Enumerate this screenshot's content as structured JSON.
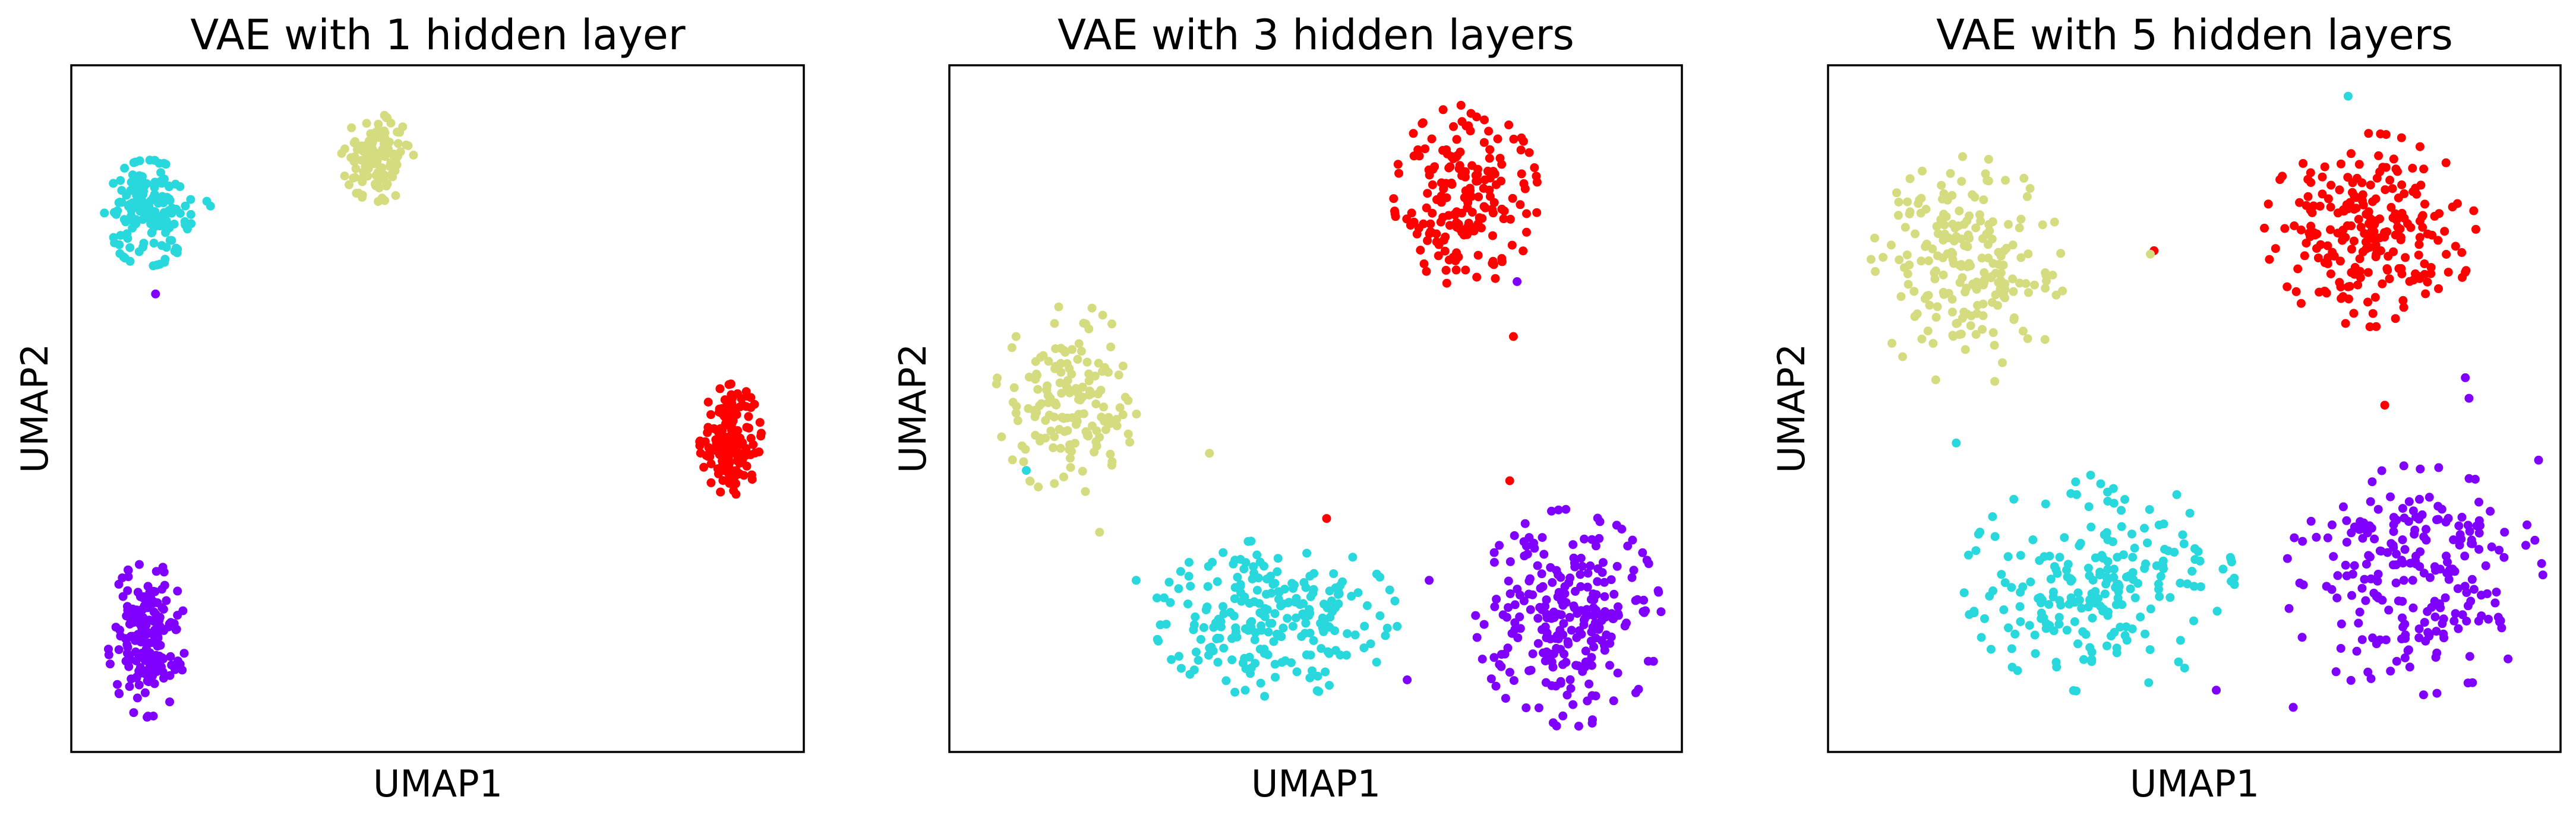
{
  "chart_data": [
    {
      "type": "scatter",
      "title": "VAE with 1 hidden layer",
      "xlabel": "UMAP1",
      "ylabel": "UMAP2",
      "xlim": [
        0,
        100
      ],
      "ylim": [
        0,
        100
      ],
      "ticks": "none",
      "grid": false,
      "clusters": [
        {
          "color": "#d4dc7f",
          "cx": 41.8,
          "cy": 86.5,
          "sx": 2.8,
          "sy": 3.6,
          "n": 130
        },
        {
          "color": "#28d8dc",
          "cx": 10.5,
          "cy": 78.5,
          "sx": 3.4,
          "sy": 4.4,
          "n": 160
        },
        {
          "color": "#ff0000",
          "cx": 90.0,
          "cy": 45.5,
          "sx": 2.4,
          "sy": 4.6,
          "n": 160
        },
        {
          "color": "#7f00ff",
          "cx": 10.3,
          "cy": 16.5,
          "sx": 3.0,
          "sy": 6.5,
          "n": 180
        }
      ],
      "outliers": [
        {
          "color": "#28d8dc",
          "x": 19.0,
          "y": 79.5
        },
        {
          "color": "#28d8dc",
          "x": 18.5,
          "y": 80.2
        },
        {
          "color": "#7f00ff",
          "x": 11.5,
          "y": 66.7
        }
      ]
    },
    {
      "type": "scatter",
      "title": "VAE with 3 hidden layers",
      "xlabel": "UMAP1",
      "ylabel": "UMAP2",
      "xlim": [
        0,
        100
      ],
      "ylim": [
        0,
        100
      ],
      "ticks": "none",
      "grid": false,
      "clusters": [
        {
          "color": "#ff0000",
          "cx": 70.5,
          "cy": 81.0,
          "sx": 5.6,
          "sy": 7.5,
          "n": 190
        },
        {
          "color": "#d4dc7f",
          "cx": 16.0,
          "cy": 51.5,
          "sx": 5.5,
          "sy": 8.0,
          "n": 160
        },
        {
          "color": "#28d8dc",
          "cx": 44.5,
          "cy": 19.5,
          "sx": 9.5,
          "sy": 6.5,
          "n": 230
        },
        {
          "color": "#7f00ff",
          "cx": 84.5,
          "cy": 19.5,
          "sx": 7.2,
          "sy": 9.0,
          "n": 250
        }
      ],
      "outliers": [
        {
          "color": "#d4dc7f",
          "x": 35.5,
          "y": 43.5
        },
        {
          "color": "#d4dc7f",
          "x": 20.5,
          "y": 32.0
        },
        {
          "color": "#28d8dc",
          "x": 25.5,
          "y": 25.0
        },
        {
          "color": "#28d8dc",
          "x": 10.5,
          "y": 41.0
        },
        {
          "color": "#ff0000",
          "x": 77.0,
          "y": 60.5
        },
        {
          "color": "#ff0000",
          "x": 76.5,
          "y": 39.5
        },
        {
          "color": "#ff0000",
          "x": 51.5,
          "y": 34.0
        },
        {
          "color": "#7f00ff",
          "x": 77.5,
          "y": 68.5
        },
        {
          "color": "#7f00ff",
          "x": 62.5,
          "y": 10.5
        },
        {
          "color": "#7f00ff",
          "x": 65.5,
          "y": 25.0
        }
      ]
    },
    {
      "type": "scatter",
      "title": "VAE with 5 hidden layers",
      "xlabel": "UMAP1",
      "ylabel": "UMAP2",
      "xlim": [
        0,
        100
      ],
      "ylim": [
        0,
        100
      ],
      "ticks": "none",
      "grid": false,
      "clusters": [
        {
          "color": "#ff0000",
          "cx": 74.0,
          "cy": 76.0,
          "sx": 8.2,
          "sy": 8.0,
          "n": 230
        },
        {
          "color": "#d4dc7f",
          "cx": 19.0,
          "cy": 70.0,
          "sx": 7.5,
          "sy": 9.5,
          "n": 210
        },
        {
          "color": "#28d8dc",
          "cx": 37.0,
          "cy": 24.5,
          "sx": 10.5,
          "sy": 9.0,
          "n": 220
        },
        {
          "color": "#7f00ff",
          "cx": 80.0,
          "cy": 25.0,
          "sx": 10.0,
          "sy": 9.5,
          "n": 230
        }
      ],
      "outliers": [
        {
          "color": "#28d8dc",
          "x": 71.0,
          "y": 95.5
        },
        {
          "color": "#ff0000",
          "x": 44.5,
          "y": 73.0
        },
        {
          "color": "#d4dc7f",
          "x": 44.0,
          "y": 72.5
        },
        {
          "color": "#ff0000",
          "x": 76.0,
          "y": 50.5
        },
        {
          "color": "#7f00ff",
          "x": 87.5,
          "y": 51.5
        },
        {
          "color": "#7f00ff",
          "x": 87.0,
          "y": 54.5
        },
        {
          "color": "#7f00ff",
          "x": 97.0,
          "y": 42.5
        },
        {
          "color": "#28d8dc",
          "x": 17.5,
          "y": 45.0
        },
        {
          "color": "#7f00ff",
          "x": 63.5,
          "y": 6.5
        },
        {
          "color": "#7f00ff",
          "x": 53.0,
          "y": 9.0
        }
      ]
    }
  ]
}
